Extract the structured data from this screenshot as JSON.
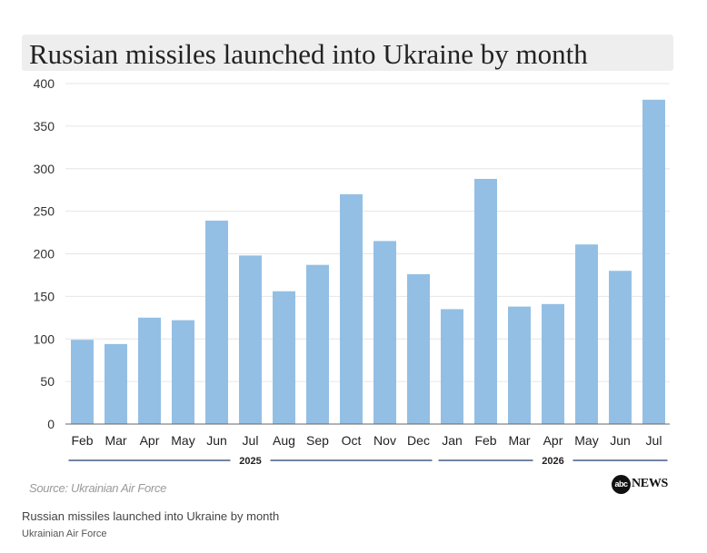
{
  "figure": {
    "source_note": "Source: Ukrainian Air Force",
    "logo_text": "abc",
    "logo_word": "NEWS"
  },
  "caption": {
    "title": "Russian missiles launched into Ukraine by month",
    "credit": "Ukrainian Air Force"
  },
  "colors": {
    "bar": "#94bfe4",
    "year_rule": "#1f3c6b",
    "grid": "#e6e6e6"
  },
  "chart_data": {
    "type": "bar",
    "title": "Russian missiles launched into Ukraine by month",
    "categories": [
      "Feb",
      "Mar",
      "Apr",
      "May",
      "Jun",
      "Jul",
      "Aug",
      "Sep",
      "Oct",
      "Nov",
      "Dec",
      "Jan",
      "Feb",
      "Mar",
      "Apr",
      "May",
      "Jun",
      "Jul"
    ],
    "values": [
      99,
      94,
      125,
      122,
      239,
      198,
      156,
      187,
      270,
      215,
      176,
      135,
      288,
      138,
      141,
      211,
      180,
      381
    ],
    "year_groups": [
      {
        "label": "2025",
        "first": 0,
        "last": 10
      },
      {
        "label": "2026",
        "first": 11,
        "last": 17
      }
    ],
    "ylim": [
      0,
      400
    ],
    "yticks": [
      0,
      50,
      100,
      150,
      200,
      250,
      300,
      350,
      400
    ],
    "grid": true,
    "legend": "none"
  }
}
